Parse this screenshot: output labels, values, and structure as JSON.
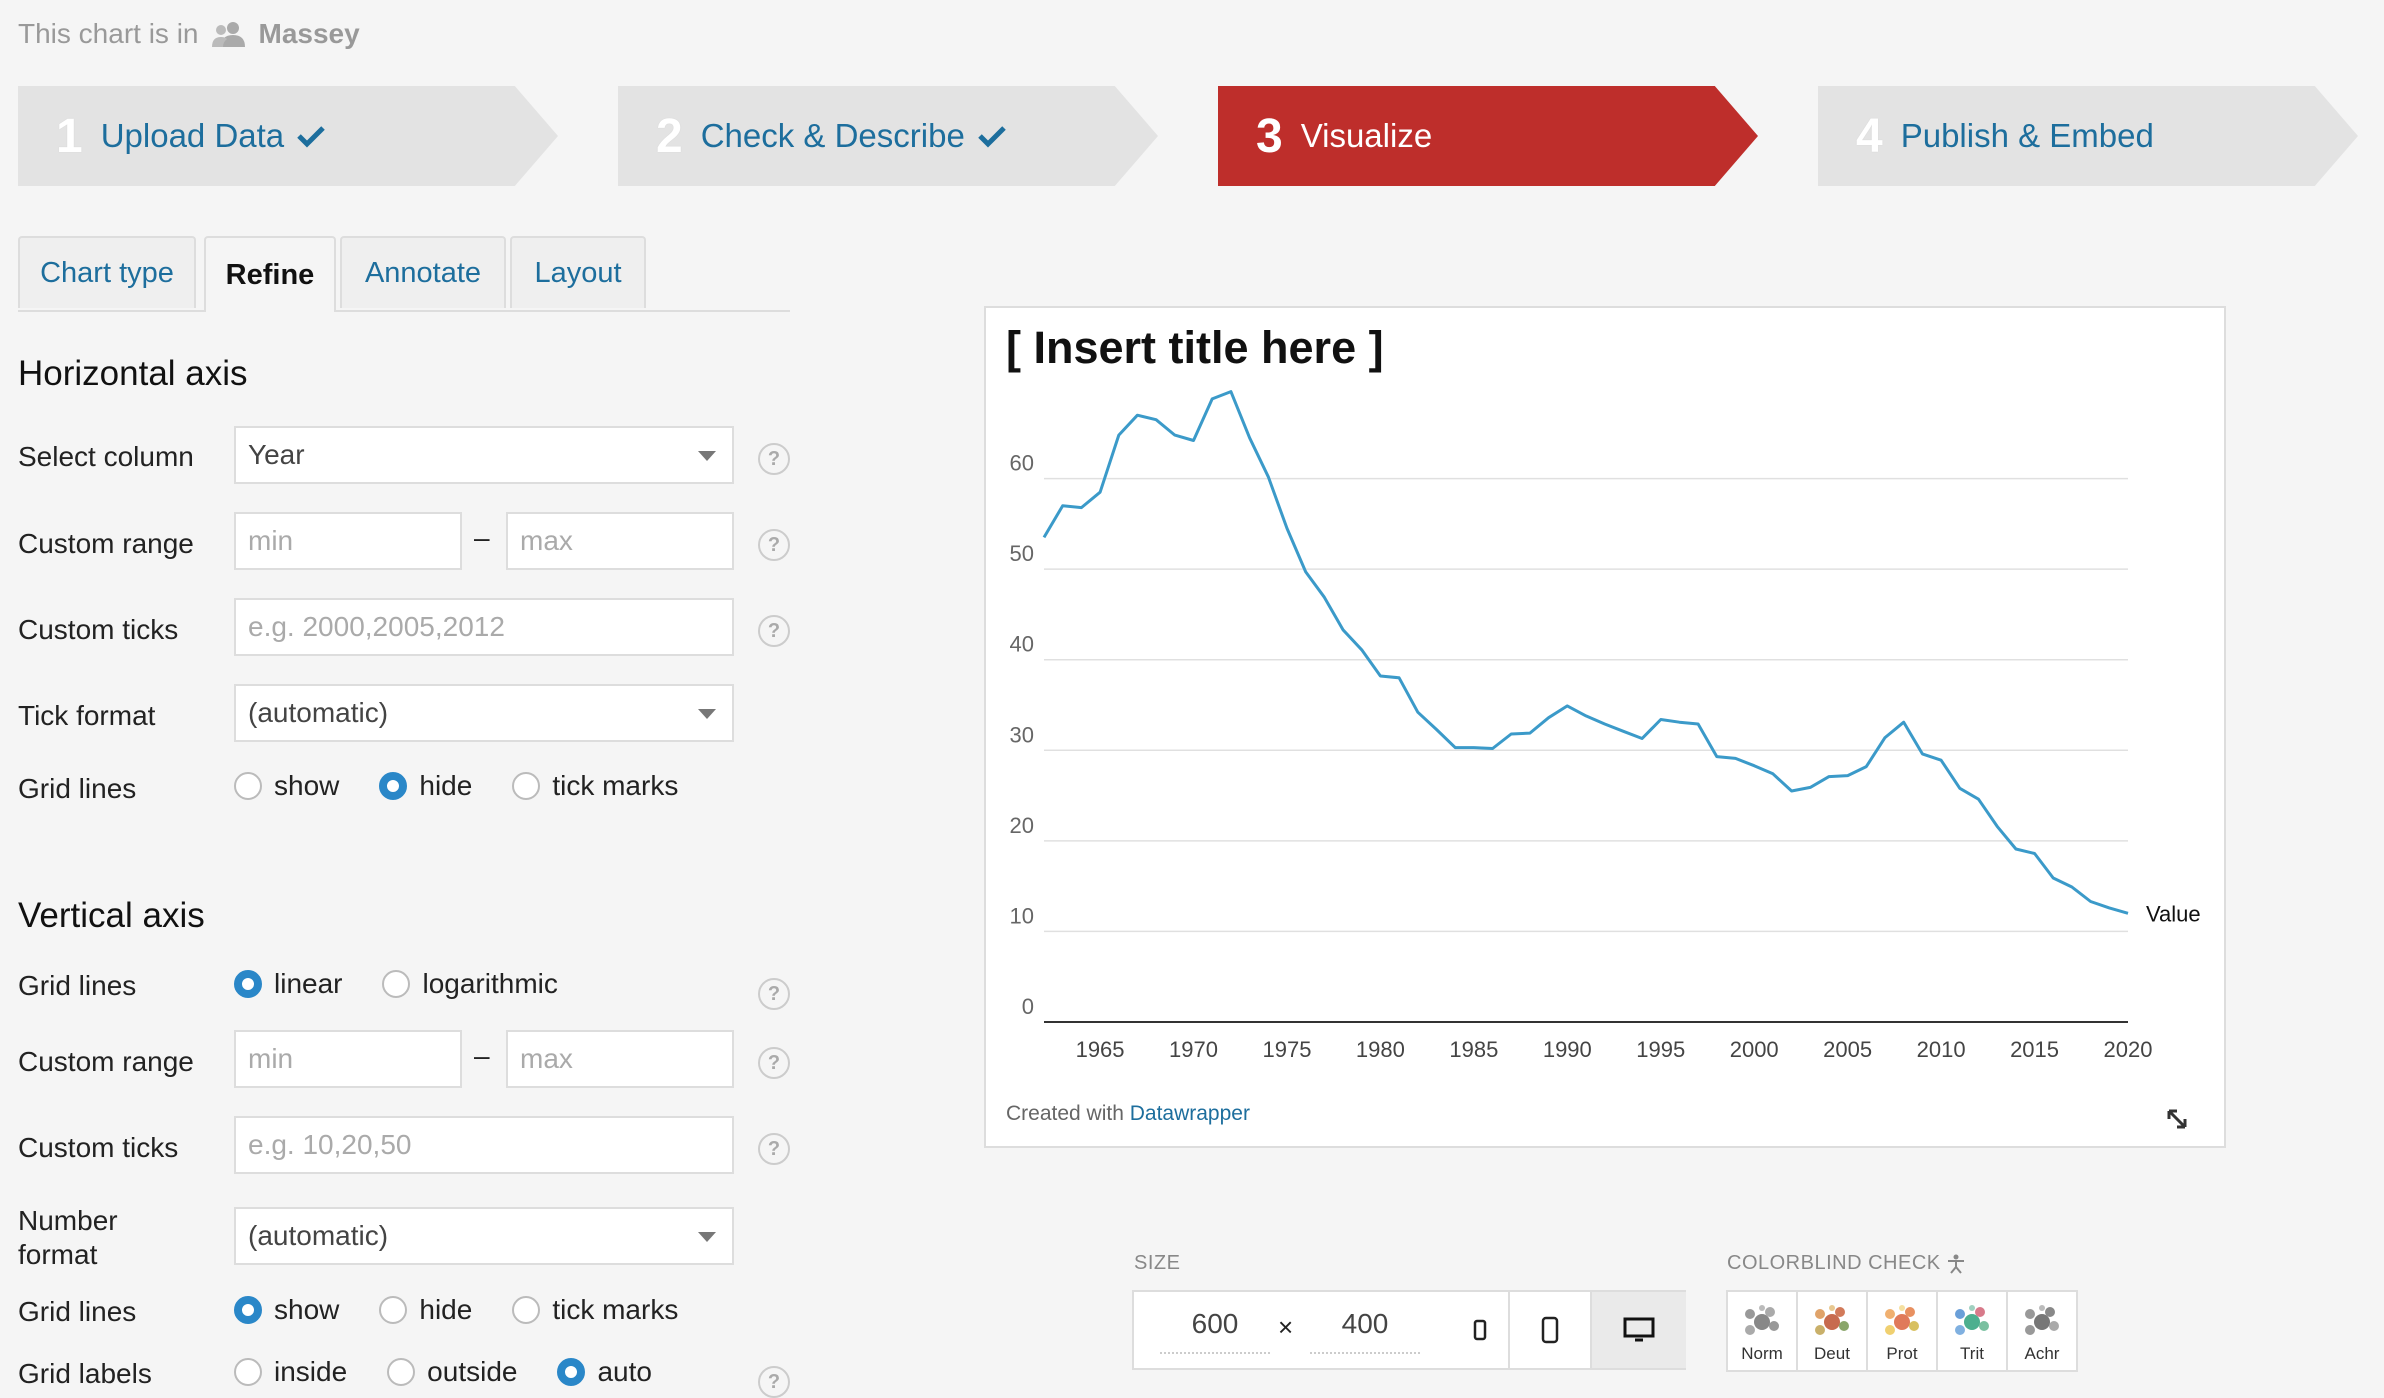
{
  "header": {
    "prefix": "This chart is in",
    "org": "Massey"
  },
  "steps": [
    {
      "num": "1",
      "label": "Upload Data",
      "done": true
    },
    {
      "num": "2",
      "label": "Check & Describe",
      "done": true
    },
    {
      "num": "3",
      "label": "Visualize",
      "active": true
    },
    {
      "num": "4",
      "label": "Publish & Embed"
    }
  ],
  "tabs": [
    "Chart type",
    "Refine",
    "Annotate",
    "Layout"
  ],
  "horizontal_axis": {
    "title": "Horizontal axis",
    "select_column": {
      "label": "Select column",
      "value": "Year"
    },
    "custom_range": {
      "label": "Custom range",
      "min_placeholder": "min",
      "max_placeholder": "max",
      "sep": "–"
    },
    "custom_ticks": {
      "label": "Custom ticks",
      "placeholder": "e.g. 2000,2005,2012"
    },
    "tick_format": {
      "label": "Tick format",
      "value": "(automatic)"
    },
    "grid_lines": {
      "label": "Grid lines",
      "options": [
        "show",
        "hide",
        "tick marks"
      ],
      "selected": "hide"
    }
  },
  "vertical_axis": {
    "title": "Vertical axis",
    "scale": {
      "label": "Grid lines",
      "options": [
        "linear",
        "logarithmic"
      ],
      "selected": "linear"
    },
    "custom_range": {
      "label": "Custom range",
      "min_placeholder": "min",
      "max_placeholder": "max",
      "sep": "–"
    },
    "custom_ticks": {
      "label": "Custom ticks",
      "placeholder": "e.g. 10,20,50"
    },
    "number_format": {
      "label_line1": "Number",
      "label_line2": "format",
      "value": "(automatic)"
    },
    "grid_lines": {
      "label": "Grid lines",
      "options": [
        "show",
        "hide",
        "tick marks"
      ],
      "selected": "show"
    },
    "grid_labels": {
      "label": "Grid labels",
      "options": [
        "inside",
        "outside",
        "auto"
      ],
      "selected": "auto"
    }
  },
  "help_mark": "?",
  "preview": {
    "title": "[ Insert title here ]",
    "credit_prefix": "Created with",
    "credit_link": "Datawrapper"
  },
  "chart_data": {
    "type": "line",
    "title": "[ Insert title here ]",
    "series": [
      {
        "name": "Value",
        "color": "#3b9ac9",
        "points": [
          [
            1962,
            53.5
          ],
          [
            1963,
            57
          ],
          [
            1964,
            56.8
          ],
          [
            1965,
            58.5
          ],
          [
            1966,
            64.8
          ],
          [
            1967,
            67
          ],
          [
            1968,
            66.5
          ],
          [
            1969,
            64.8
          ],
          [
            1970,
            64.2
          ],
          [
            1971,
            68.8
          ],
          [
            1972,
            69.6
          ],
          [
            1973,
            64.5
          ],
          [
            1974,
            60.2
          ],
          [
            1975,
            54.5
          ],
          [
            1976,
            49.7
          ],
          [
            1977,
            46.9
          ],
          [
            1978,
            43.3
          ],
          [
            1979,
            41.1
          ],
          [
            1980,
            38.2
          ],
          [
            1981,
            38.0
          ],
          [
            1982,
            34.2
          ],
          [
            1983,
            32.3
          ],
          [
            1984,
            30.3
          ],
          [
            1985,
            30.3
          ],
          [
            1986,
            30.2
          ],
          [
            1987,
            31.8
          ],
          [
            1988,
            31.9
          ],
          [
            1989,
            33.6
          ],
          [
            1990,
            34.9
          ],
          [
            1991,
            33.8
          ],
          [
            1992,
            32.9
          ],
          [
            1993,
            32.1
          ],
          [
            1994,
            31.3
          ],
          [
            1995,
            33.4
          ],
          [
            1996,
            33.1
          ],
          [
            1997,
            32.9
          ],
          [
            1998,
            29.3
          ],
          [
            1999,
            29.1
          ],
          [
            2000,
            28.3
          ],
          [
            2001,
            27.4
          ],
          [
            2002,
            25.5
          ],
          [
            2003,
            25.9
          ],
          [
            2004,
            27.1
          ],
          [
            2005,
            27.2
          ],
          [
            2006,
            28.2
          ],
          [
            2007,
            31.4
          ],
          [
            2008,
            33.1
          ],
          [
            2009,
            29.6
          ],
          [
            2010,
            28.9
          ],
          [
            2011,
            25.8
          ],
          [
            2012,
            24.6
          ],
          [
            2013,
            21.6
          ],
          [
            2014,
            19.1
          ],
          [
            2015,
            18.6
          ],
          [
            2016,
            15.9
          ],
          [
            2017,
            14.9
          ],
          [
            2018,
            13.3
          ],
          [
            2019,
            12.6
          ],
          [
            2020,
            12.0
          ]
        ]
      }
    ],
    "x_ticks": [
      1965,
      1970,
      1975,
      1980,
      1985,
      1990,
      1995,
      2000,
      2005,
      2010,
      2015,
      2020
    ],
    "y_ticks": [
      0,
      10,
      20,
      30,
      40,
      50,
      60
    ],
    "xlim": [
      1962,
      2020
    ],
    "ylim": [
      0,
      70
    ],
    "grid": "horizontal",
    "series_label": "Value"
  },
  "size": {
    "label": "SIZE",
    "width": "600",
    "times": "×",
    "height": "400"
  },
  "colorblind": {
    "label": "COLORBLIND CHECK",
    "modes": [
      "Norm",
      "Deut",
      "Prot",
      "Trit",
      "Achr"
    ]
  }
}
